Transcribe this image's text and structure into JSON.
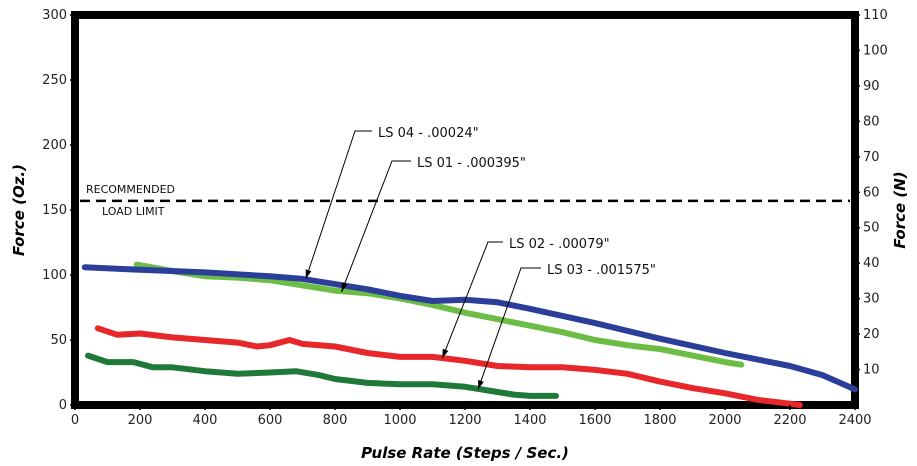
{
  "chart_data": {
    "type": "line",
    "title": "",
    "xlabel": "Pulse Rate (Steps / Sec.)",
    "ylabel": "Force (Oz.)",
    "y2label": "Force (N)",
    "xlim": [
      0,
      2400
    ],
    "ylim": [
      0,
      300
    ],
    "y2lim": [
      0,
      110
    ],
    "x_ticks": [
      "0",
      "200",
      "400",
      "600",
      "800",
      "1000",
      "1200",
      "1400",
      "1600",
      "1800",
      "2000",
      "2200",
      "2400"
    ],
    "y_ticks": [
      "0",
      "50",
      "100",
      "150",
      "200",
      "250",
      "300"
    ],
    "y2_ticks": [
      "10",
      "20",
      "30",
      "40",
      "50",
      "60",
      "70",
      "80",
      "90",
      "100",
      "110"
    ],
    "grid": false,
    "recommended_load_limit": {
      "y": 157,
      "label_line1": "RECOMMENDED",
      "label_line2": "LOAD LIMIT",
      "color": "#000000"
    },
    "series": [
      {
        "name": "LS 04 - .00024\"",
        "color": "#2b3f9a",
        "x": [
          30,
          200,
          400,
          600,
          700,
          800,
          900,
          1000,
          1100,
          1200,
          1300,
          1400,
          1600,
          1800,
          2000,
          2200,
          2300,
          2400
        ],
        "y": [
          106,
          104,
          102,
          99,
          97,
          93,
          89,
          84,
          80,
          81,
          79,
          74,
          63,
          51,
          40,
          30,
          23,
          12
        ]
      },
      {
        "name": "LS 01 - .000395\"",
        "color": "#6cbd45",
        "x": [
          190,
          300,
          400,
          500,
          600,
          700,
          800,
          900,
          1000,
          1100,
          1200,
          1300,
          1400,
          1500,
          1600,
          1700,
          1800,
          1900,
          2000,
          2050
        ],
        "y": [
          108,
          103,
          99,
          98,
          96,
          92,
          88,
          86,
          82,
          77,
          71,
          66,
          61,
          56,
          50,
          46,
          43,
          38,
          33,
          31
        ]
      },
      {
        "name": "LS 02 - .00079\"",
        "color": "#e8272a",
        "x": [
          70,
          130,
          200,
          300,
          400,
          500,
          560,
          600,
          660,
          700,
          800,
          900,
          1000,
          1100,
          1200,
          1300,
          1400,
          1500,
          1600,
          1700,
          1800,
          1900,
          2000,
          2100,
          2200,
          2230
        ],
        "y": [
          59,
          54,
          55,
          52,
          50,
          48,
          45,
          46,
          50,
          47,
          45,
          40,
          37,
          37,
          34,
          30,
          29,
          29,
          27,
          24,
          18,
          13,
          9,
          4,
          1,
          0
        ]
      },
      {
        "name": "LS 03 - .001575\"",
        "color": "#1f7a3a",
        "x": [
          40,
          100,
          180,
          240,
          300,
          400,
          500,
          600,
          680,
          750,
          800,
          900,
          1000,
          1100,
          1200,
          1250,
          1300,
          1350,
          1400,
          1480
        ],
        "y": [
          38,
          33,
          33,
          29,
          29,
          26,
          24,
          25,
          26,
          23,
          20,
          17,
          16,
          16,
          14,
          12,
          10,
          8,
          7,
          7
        ]
      }
    ],
    "annotations": [
      {
        "text": "LS 04 - .00024\"",
        "series": 0,
        "target_x": 710,
        "target_y": 97
      },
      {
        "text": "LS 01 - .000395\"",
        "series": 1,
        "target_x": 820,
        "target_y": 87
      },
      {
        "text": "LS 02 - .00079\"",
        "series": 2,
        "target_x": 1130,
        "target_y": 36
      },
      {
        "text": "LS 03 - .001575\"",
        "series": 3,
        "target_x": 1240,
        "target_y": 12
      }
    ]
  }
}
